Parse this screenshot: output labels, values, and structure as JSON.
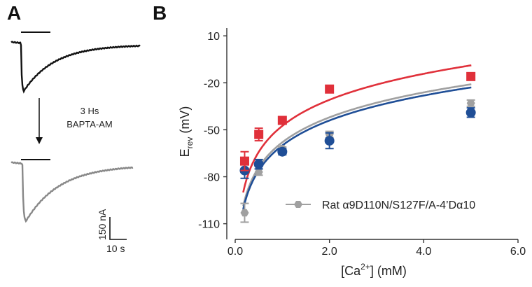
{
  "panel_a": {
    "letter": "A",
    "annotation_line1": "3 Hs",
    "annotation_line2": "BAPTA-AM",
    "scalebar_y_label": "150 nA",
    "scalebar_x_label": "10 s",
    "colors": {
      "control": "#111111",
      "treated": "#888888"
    }
  },
  "panel_b": {
    "letter": "B",
    "legend_label": "Rat α9D110N/S127F/A-4’Dα10"
  },
  "chart_data": {
    "type": "scatter",
    "xlabel_main": "[Ca",
    "xlabel_sup": "2+",
    "xlabel_tail": "] (mM)",
    "ylabel_main": "E",
    "ylabel_sub": "rev",
    "ylabel_tail": " (mV)",
    "xlim": [
      0,
      6
    ],
    "ylim": [
      -120,
      15
    ],
    "x_ticks": [
      0,
      2,
      4,
      6
    ],
    "x_tick_labels": [
      "0.0",
      "2.0",
      "4.0",
      "6.0"
    ],
    "y_ticks": [
      10,
      -20,
      -50,
      -80,
      -110
    ],
    "y_tick_labels": [
      "10",
      "-20",
      "-50",
      "-80",
      "-110"
    ],
    "grid": false,
    "legend_position": "bottom-right",
    "series": [
      {
        "color": "#e0303a",
        "marker": "square",
        "x": [
          0.2,
          0.5,
          1.0,
          2.0,
          5.0
        ],
        "y": [
          -70,
          -53,
          -44,
          -24,
          -16
        ],
        "err": [
          6,
          4,
          2,
          2,
          0
        ],
        "fit": {
          "a": -47.5,
          "b": 24
        }
      },
      {
        "color": "#1f4e96",
        "marker": "circle",
        "x": [
          0.2,
          0.5,
          1.0,
          2.0,
          5.0
        ],
        "y": [
          -76,
          -72,
          -64,
          -57,
          -39
        ],
        "err": [
          5,
          3,
          2,
          5,
          3
        ],
        "fit": {
          "a": -60,
          "b": 23
        }
      },
      {
        "name": "Rat α9D110N/S127F/A-4’Dα10",
        "color": "#a0a0a0",
        "marker": "hexagon",
        "x": [
          0.2,
          0.5,
          1.0,
          2.0,
          5.0
        ],
        "y": [
          -103,
          -77,
          -62,
          -53,
          -33
        ],
        "err": [
          6,
          2,
          1,
          2,
          2
        ],
        "fit": {
          "a": -58,
          "b": 23
        }
      }
    ]
  }
}
